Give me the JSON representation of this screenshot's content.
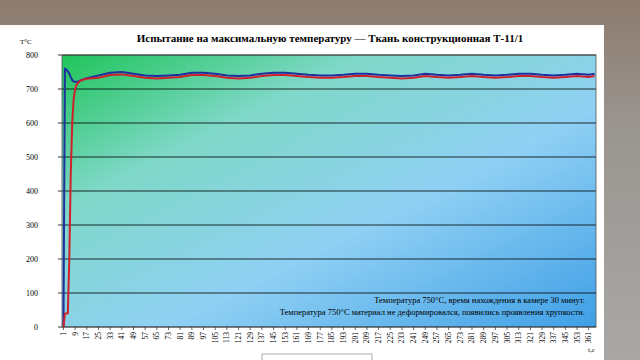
{
  "chart_data": {
    "type": "line",
    "title": "Испытание на максимальную температуру — Ткань конструкционная Т-11/1",
    "y_label": "T°C",
    "x_label": "t,с",
    "annotations": [
      "Температура 750°С, время нахождения в камере 30 минут.",
      "Температура 750°С материал не деформировался, появились проявления хрупкости."
    ],
    "x": [
      1,
      2,
      3,
      4,
      5,
      6,
      7,
      8,
      9,
      10,
      11,
      12,
      13,
      15,
      17,
      25,
      33,
      41,
      49,
      57,
      65,
      73,
      81,
      89,
      97,
      105,
      113,
      121,
      129,
      137,
      145,
      153,
      161,
      169,
      177,
      185,
      193,
      201,
      209,
      217,
      225,
      233,
      241,
      249,
      257,
      265,
      273,
      281,
      289,
      297,
      305,
      313,
      321,
      329,
      337,
      345,
      353,
      361,
      365
    ],
    "series": [
      {
        "color": "#1f2f9e",
        "values": [
          0,
          760,
          757,
          752,
          745,
          735,
          726,
          722,
          721,
          721,
          722,
          724,
          726,
          729,
          732,
          740,
          748,
          750,
          745,
          740,
          738,
          740,
          742,
          748,
          748,
          745,
          740,
          738,
          740,
          745,
          748,
          748,
          745,
          742,
          740,
          740,
          742,
          745,
          745,
          742,
          740,
          738,
          740,
          745,
          742,
          740,
          742,
          745,
          742,
          740,
          742,
          745,
          745,
          742,
          740,
          742,
          745,
          742,
          745
        ]
      },
      {
        "color": "#d0202c",
        "values": [
          0,
          40,
          40,
          40,
          200,
          450,
          600,
          670,
          700,
          712,
          718,
          722,
          725,
          728,
          730,
          733,
          741,
          743,
          738,
          733,
          731,
          733,
          735,
          741,
          741,
          738,
          733,
          731,
          733,
          738,
          741,
          741,
          738,
          735,
          733,
          733,
          735,
          738,
          738,
          735,
          733,
          731,
          733,
          738,
          735,
          733,
          735,
          738,
          735,
          733,
          735,
          738,
          738,
          735,
          733,
          735,
          738,
          735,
          738
        ]
      }
    ],
    "xlim": [
      0,
      366
    ],
    "xticks": [
      1,
      9,
      17,
      25,
      33,
      41,
      49,
      57,
      65,
      73,
      81,
      89,
      97,
      105,
      113,
      121,
      129,
      137,
      145,
      153,
      161,
      169,
      177,
      185,
      193,
      201,
      209,
      217,
      225,
      233,
      241,
      249,
      257,
      265,
      273,
      281,
      289,
      297,
      305,
      313,
      321,
      329,
      337,
      345,
      353,
      361
    ],
    "ylim": [
      0,
      800
    ],
    "yticks": [
      0,
      100,
      200,
      300,
      400,
      500,
      600,
      700,
      800
    ],
    "grid": true
  }
}
